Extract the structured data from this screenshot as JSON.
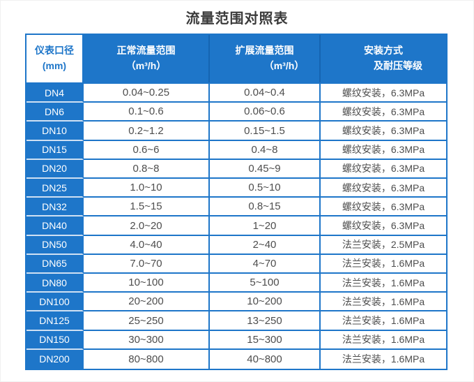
{
  "page": {
    "title": "流量范围对照表"
  },
  "table": {
    "headers": {
      "col1_line1": "仪表口径",
      "col1_line2": "(mm)",
      "col2_line1": "正常流量范围",
      "col2_line2": "（m³/h）",
      "col3_line1": "扩展流量范围",
      "col3_line2": "（m³/h）",
      "col4_line1": "安装方式",
      "col4_line2": "及耐压等级"
    },
    "colors": {
      "primary_blue": "#1e76c9",
      "header_divider": "#1565b2",
      "light_row_separator": "#cfe0f3",
      "body_text": "#4d4d4d"
    }
  },
  "chart_data": {
    "type": "table",
    "title": "流量范围对照表",
    "columns": [
      "仪表口径 (mm)",
      "正常流量范围（m³/h）",
      "扩展流量范围（m³/h）",
      "安装方式及耐压等级"
    ],
    "rows": [
      [
        "DN4",
        "0.04~0.25",
        "0.04~0.4",
        "螺纹安装，6.3MPa"
      ],
      [
        "DN6",
        "0.1~0.6",
        "0.06~0.6",
        "螺纹安装，6.3MPa"
      ],
      [
        "DN10",
        "0.2~1.2",
        "0.15~1.5",
        "螺纹安装，6.3MPa"
      ],
      [
        "DN15",
        "0.6~6",
        "0.4~8",
        "螺纹安装，6.3MPa"
      ],
      [
        "DN20",
        "0.8~8",
        "0.45~9",
        "螺纹安装，6.3MPa"
      ],
      [
        "DN25",
        "1.0~10",
        "0.5~10",
        "螺纹安装，6.3MPa"
      ],
      [
        "DN32",
        "1.5~15",
        "0.8~15",
        "螺纹安装，6.3MPa"
      ],
      [
        "DN40",
        "2.0~20",
        "1~20",
        "螺纹安装，6.3MPa"
      ],
      [
        "DN50",
        "4.0~40",
        "2~40",
        "法兰安装，2.5MPa"
      ],
      [
        "DN65",
        "7.0~70",
        "4~70",
        "法兰安装，1.6MPa"
      ],
      [
        "DN80",
        "10~100",
        "5~100",
        "法兰安装，1.6MPa"
      ],
      [
        "DN100",
        "20~200",
        "10~200",
        "法兰安装，1.6MPa"
      ],
      [
        "DN125",
        "25~250",
        "13~250",
        "法兰安装，1.6MPa"
      ],
      [
        "DN150",
        "30~300",
        "15~300",
        "法兰安装，1.6MPa"
      ],
      [
        "DN200",
        "80~800",
        "40~800",
        "法兰安装，1.6MPa"
      ]
    ]
  }
}
